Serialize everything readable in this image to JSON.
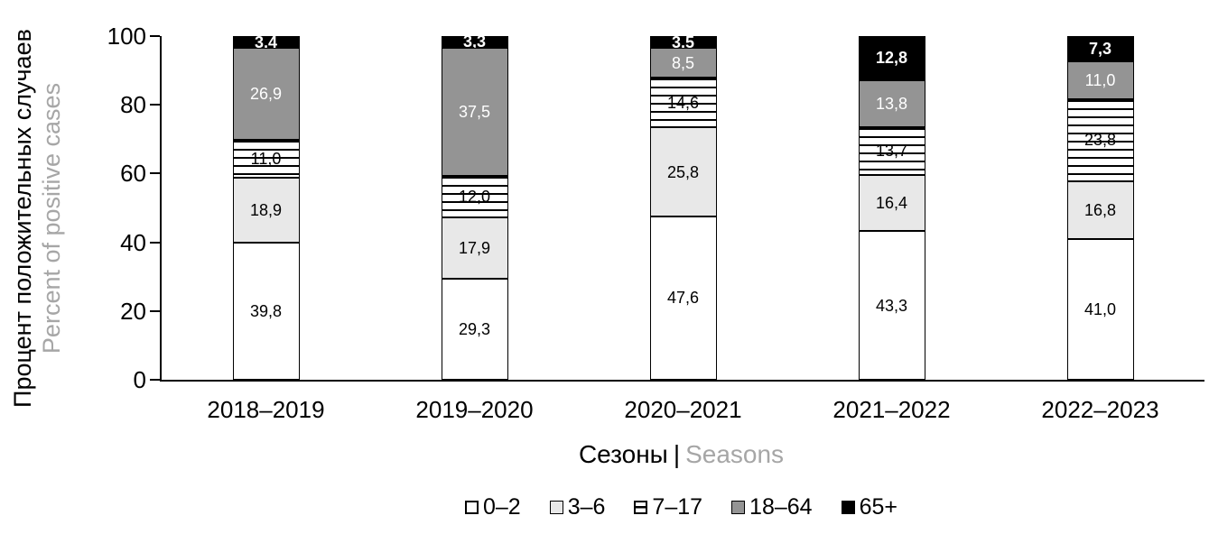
{
  "chart_data": {
    "type": "bar",
    "subtype": "stacked-percent",
    "categories": [
      "2018–2019",
      "2019–2020",
      "2020–2021",
      "2021–2022",
      "2022–2023"
    ],
    "series": [
      {
        "name": "0–2",
        "fill": "#ffffff",
        "pattern": "solid",
        "label_color": "#000000",
        "label_bold": false,
        "values": [
          39.8,
          29.3,
          47.6,
          43.3,
          41.0
        ]
      },
      {
        "name": "3–6",
        "fill": "#e8e8e8",
        "pattern": "solid",
        "label_color": "#000000",
        "label_bold": false,
        "values": [
          18.9,
          17.9,
          25.8,
          16.4,
          16.8
        ]
      },
      {
        "name": "7–17",
        "fill": "#ffffff",
        "pattern": "hlines",
        "label_color": "#000000",
        "label_bold": false,
        "values": [
          11.0,
          12.0,
          14.6,
          13.7,
          23.8
        ]
      },
      {
        "name": "18–64",
        "fill": "#949494",
        "pattern": "solid",
        "label_color": "#ffffff",
        "label_bold": false,
        "values": [
          26.9,
          37.5,
          8.5,
          13.8,
          11.0
        ]
      },
      {
        "name": "65+",
        "fill": "#000000",
        "pattern": "solid",
        "label_color": "#ffffff",
        "label_bold": true,
        "values": [
          3.4,
          3.3,
          3.5,
          12.8,
          7.3
        ]
      }
    ],
    "y_axis": {
      "title_ru": "Процент положительных случаев",
      "title_en": "Percent of positive cases",
      "ticks": [
        0,
        20,
        40,
        60,
        80,
        100
      ],
      "range": [
        0,
        100
      ]
    },
    "x_axis": {
      "title_ru": "Сезоны",
      "separator": "|",
      "title_en": "Seasons"
    },
    "legend": {
      "position": "bottom",
      "entries": [
        "0–2",
        "3–6",
        "7–17",
        "18–64",
        "65+"
      ]
    },
    "decimal_separator": ",",
    "grid": false,
    "colors": {
      "secondary_text": "#a6a6a6",
      "axis": "#000000",
      "background": "#ffffff"
    }
  }
}
